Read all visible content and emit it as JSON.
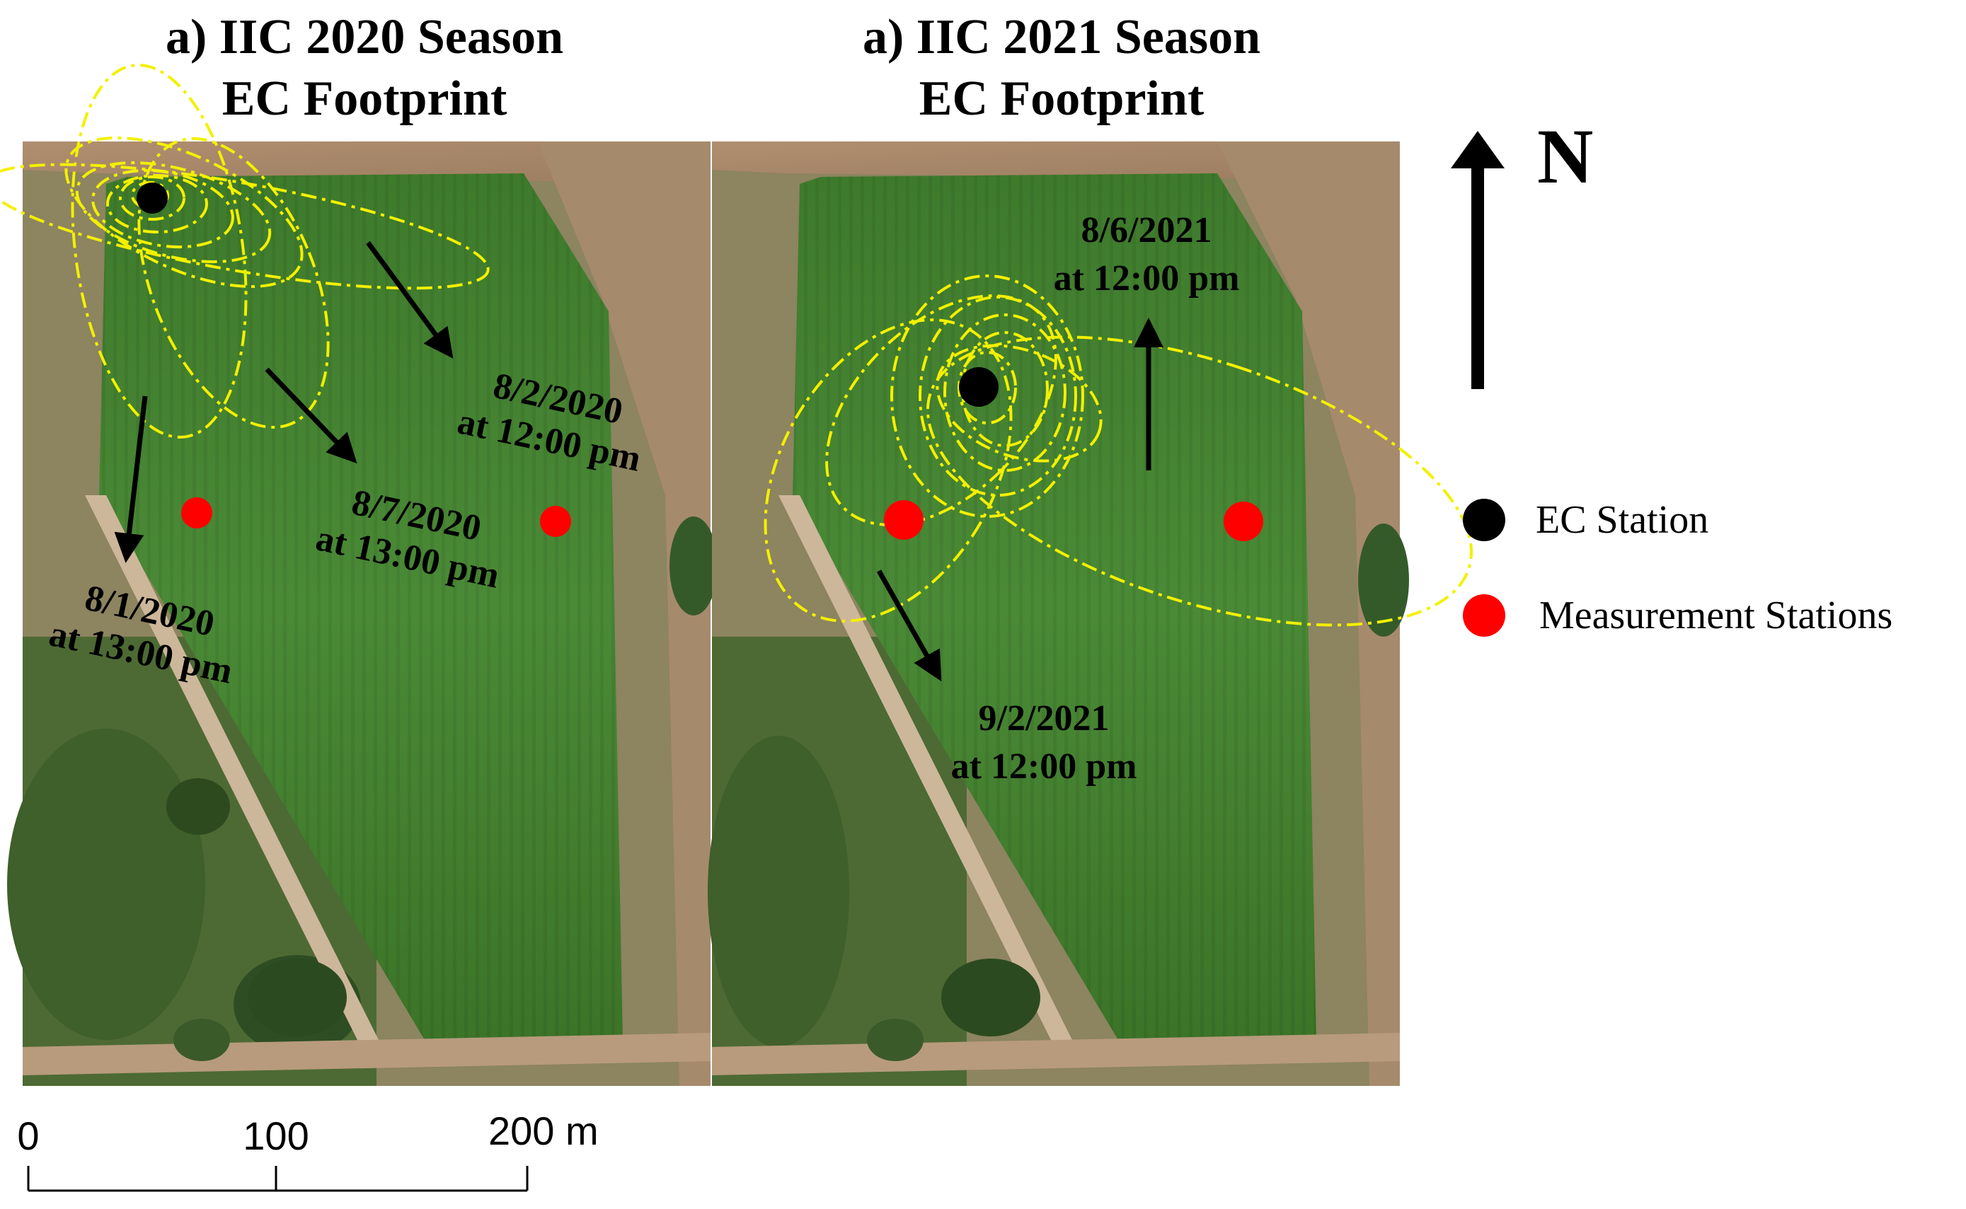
{
  "panels": [
    {
      "title_line1": "a) IIC 2020 Season",
      "title_line2": "EC Footprint",
      "annotations": [
        {
          "line1": "8/2/2020",
          "line2": "at 12:00 pm"
        },
        {
          "line1": "8/7/2020",
          "line2": "at 13:00 pm"
        },
        {
          "line1": "8/1/2020",
          "line2": "at 13:00 pm"
        }
      ]
    },
    {
      "title_line1": "a) IIC 2021 Season",
      "title_line2": "EC Footprint",
      "annotations": [
        {
          "line1": "8/6/2021",
          "line2": "at 12:00 pm"
        },
        {
          "line1": "9/2/2021",
          "line2": "at 12:00 pm"
        }
      ]
    }
  ],
  "north_label": "N",
  "legend": {
    "ec_station": "EC Station",
    "measurement_stations": "Measurement Stations"
  },
  "scale_bar": {
    "tick0": "0",
    "tick1": "100",
    "tick2": "200 m"
  },
  "colors": {
    "footprint": "#f3f000",
    "ec_station": "#000000",
    "measurement_station": "#ff0000",
    "field": "#3f7a2c"
  }
}
